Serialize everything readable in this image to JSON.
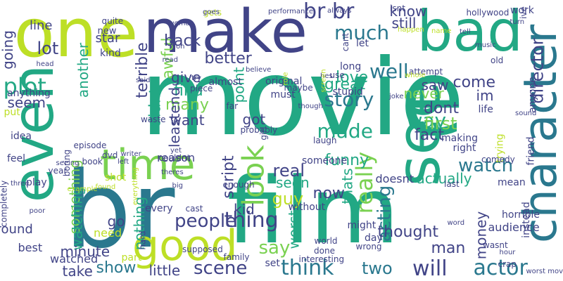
{
  "palette": {
    "dark_purple": "#440154",
    "indigo": "#414487",
    "steel_blue": "#2a788e",
    "teal": "#22a884",
    "green": "#7ad151",
    "yellow_green": "#bddf26",
    "yellow": "#fde725",
    "background": "#ffffff"
  },
  "words": [
    {
      "text": "movie",
      "color": "#22a884"
    },
    {
      "text": "film",
      "color": "#22a884"
    },
    {
      "text": "one",
      "color": "#bddf26"
    },
    {
      "text": "make",
      "color": "#414487"
    },
    {
      "text": "bad",
      "color": "#22a884"
    },
    {
      "text": "br",
      "color": "#2a788e"
    },
    {
      "text": "even",
      "color": "#22a884"
    },
    {
      "text": "time",
      "color": "#7ad151"
    },
    {
      "text": "see",
      "color": "#22a884"
    },
    {
      "text": "character",
      "color": "#2a788e"
    },
    {
      "text": "good",
      "color": "#bddf26"
    },
    {
      "text": "br br",
      "color": "#414487"
    },
    {
      "text": "people",
      "color": "#414487"
    },
    {
      "text": "really",
      "color": "#7ad151"
    },
    {
      "text": "much",
      "color": "#2a788e"
    },
    {
      "text": "well",
      "color": "#2a788e"
    },
    {
      "text": "watch",
      "color": "#2a788e"
    },
    {
      "text": "story",
      "color": "#2a788e"
    },
    {
      "text": "made",
      "color": "#22a884"
    },
    {
      "text": "way",
      "color": "#22a884"
    },
    {
      "text": "look",
      "color": "#7ad151"
    },
    {
      "text": "plot",
      "color": "#22a884"
    },
    {
      "text": "think",
      "color": "#2a788e"
    },
    {
      "text": "acting",
      "color": "#2a788e"
    },
    {
      "text": "actor",
      "color": "#2a788e"
    },
    {
      "text": "will",
      "color": "#414487"
    },
    {
      "text": "scene",
      "color": "#414487"
    },
    {
      "text": "show",
      "color": "#2a788e"
    },
    {
      "text": "thing",
      "color": "#414487"
    },
    {
      "text": "say",
      "color": "#7ad151"
    },
    {
      "text": "director",
      "color": "#414487"
    },
    {
      "text": "know",
      "color": "#414487"
    },
    {
      "text": "still",
      "color": "#414487"
    },
    {
      "text": "lot",
      "color": "#414487"
    },
    {
      "text": "better",
      "color": "#414487"
    },
    {
      "text": "line",
      "color": "#414487"
    },
    {
      "text": "going",
      "color": "#414487"
    },
    {
      "text": "seem",
      "color": "#414487"
    },
    {
      "text": "awful",
      "color": "#7ad151"
    },
    {
      "text": "back",
      "color": "#414487"
    },
    {
      "text": "another",
      "color": "#22a884"
    },
    {
      "text": "terrible",
      "color": "#414487"
    },
    {
      "text": "star",
      "color": "#414487"
    },
    {
      "text": "new",
      "color": "#414487"
    },
    {
      "text": "kind",
      "color": "#414487"
    },
    {
      "text": "quite",
      "color": "#414487"
    },
    {
      "text": "find",
      "color": "#22a884"
    },
    {
      "text": "many",
      "color": "#7ad151"
    },
    {
      "text": "leastend",
      "color": "#414487"
    },
    {
      "text": "want",
      "color": "#414487"
    },
    {
      "text": "got",
      "color": "#414487"
    },
    {
      "text": "point",
      "color": "#22a884"
    },
    {
      "text": "script",
      "color": "#414487"
    },
    {
      "text": "something",
      "color": "#7ad151"
    },
    {
      "text": "didnt",
      "color": "#22a884"
    },
    {
      "text": "give",
      "color": "#414487"
    },
    {
      "text": "great",
      "color": "#22a884"
    },
    {
      "text": "love",
      "color": "#22a884"
    },
    {
      "text": "dont",
      "color": "#414487"
    },
    {
      "text": "first",
      "color": "#7ad151"
    },
    {
      "text": "fact",
      "color": "#414487"
    },
    {
      "text": "funny",
      "color": "#22a884"
    },
    {
      "text": "real",
      "color": "#414487"
    },
    {
      "text": "guy",
      "color": "#bddf26"
    },
    {
      "text": "seen",
      "color": "#22a884"
    },
    {
      "text": "thats",
      "color": "#22a884"
    },
    {
      "text": "now",
      "color": "#414487"
    },
    {
      "text": "worst",
      "color": "#22a884"
    },
    {
      "text": "kid",
      "color": "#414487"
    },
    {
      "text": "never",
      "color": "#7ad151"
    },
    {
      "text": "im",
      "color": "#414487"
    },
    {
      "text": "come",
      "color": "#414487"
    },
    {
      "text": "saw",
      "color": "#414487"
    },
    {
      "text": "actually",
      "color": "#22a884"
    },
    {
      "text": "thought",
      "color": "#414487"
    },
    {
      "text": "money",
      "color": "#414487"
    },
    {
      "text": "man",
      "color": "#414487"
    },
    {
      "text": "two",
      "color": "#2a788e"
    },
    {
      "text": "go",
      "color": "#414487"
    },
    {
      "text": "watching",
      "color": "#22a884"
    },
    {
      "text": "nothing",
      "color": "#22a884"
    },
    {
      "text": "minute",
      "color": "#414487"
    },
    {
      "text": "little",
      "color": "#414487"
    },
    {
      "text": "take",
      "color": "#414487"
    },
    {
      "text": "watched",
      "color": "#414487"
    },
    {
      "text": "need",
      "color": "#bddf26"
    },
    {
      "text": "best",
      "color": "#414487"
    },
    {
      "text": "anything",
      "color": "#414487"
    },
    {
      "text": "around",
      "color": "#414487"
    },
    {
      "text": "completely",
      "color": "#414487"
    },
    {
      "text": "without",
      "color": "#414487"
    },
    {
      "text": "every",
      "color": "#414487"
    },
    {
      "text": "might",
      "color": "#414487"
    },
    {
      "text": "day",
      "color": "#414487"
    },
    {
      "text": "part",
      "color": "#bddf26"
    },
    {
      "text": "set",
      "color": "#414487"
    },
    {
      "text": "instead",
      "color": "#414487"
    },
    {
      "text": "audience",
      "color": "#414487"
    },
    {
      "text": "horrible",
      "color": "#414487"
    },
    {
      "text": "doesnt",
      "color": "#414487"
    },
    {
      "text": "someone",
      "color": "#414487"
    },
    {
      "text": "making",
      "color": "#414487"
    },
    {
      "text": "right",
      "color": "#414487"
    },
    {
      "text": "life",
      "color": "#414487"
    },
    {
      "text": "work",
      "color": "#414487"
    },
    {
      "text": "trying",
      "color": "#bddf26"
    },
    {
      "text": "friend",
      "color": "#414487"
    },
    {
      "text": "anyone",
      "color": "#414487"
    },
    {
      "text": "almost",
      "color": "#414487"
    },
    {
      "text": "original",
      "color": "#414487"
    },
    {
      "text": "must",
      "color": "#414487"
    },
    {
      "text": "long",
      "color": "#414487"
    },
    {
      "text": "let",
      "color": "#414487"
    },
    {
      "text": "cant",
      "color": "#414487"
    },
    {
      "text": "use",
      "color": "#414487"
    },
    {
      "text": "stupid",
      "color": "#414487"
    },
    {
      "text": "shot",
      "color": "#bddf26"
    },
    {
      "text": "reason",
      "color": "#414487"
    },
    {
      "text": "play",
      "color": "#414487"
    },
    {
      "text": "mean",
      "color": "#414487"
    },
    {
      "text": "idea",
      "color": "#414487"
    },
    {
      "text": "put",
      "color": "#bddf26"
    },
    {
      "text": "feel",
      "color": "#414487"
    },
    {
      "text": "year",
      "color": "#414487"
    },
    {
      "text": "dvd",
      "color": "#414487"
    },
    {
      "text": "book",
      "color": "#414487"
    },
    {
      "text": "girl",
      "color": "#414487"
    },
    {
      "text": "enough",
      "color": "#414487"
    },
    {
      "text": "done",
      "color": "#414487"
    },
    {
      "text": "wrong",
      "color": "#414487"
    },
    {
      "text": "family",
      "color": "#414487"
    },
    {
      "text": "supposed",
      "color": "#414487"
    },
    {
      "text": "cast",
      "color": "#414487"
    },
    {
      "text": "hard",
      "color": "#414487"
    },
    {
      "text": "maybe",
      "color": "#414487"
    },
    {
      "text": "far",
      "color": "#414487"
    },
    {
      "text": "waste",
      "color": "#414487"
    },
    {
      "text": "piece",
      "color": "#414487"
    },
    {
      "text": "probably",
      "color": "#414487"
    },
    {
      "text": "laugh",
      "color": "#414487"
    },
    {
      "text": "comedy",
      "color": "#414487"
    },
    {
      "text": "boring",
      "color": "#414487"
    },
    {
      "text": "episode",
      "color": "#414487"
    },
    {
      "text": "couldnt",
      "color": "#414487"
    },
    {
      "text": "world",
      "color": "#414487"
    },
    {
      "text": "interesting",
      "color": "#414487"
    },
    {
      "text": "hour",
      "color": "#414487"
    },
    {
      "text": "crap",
      "color": "#414487"
    },
    {
      "text": "worst movie",
      "color": "#414487"
    },
    {
      "text": "word",
      "color": "#414487"
    },
    {
      "text": "wasnt",
      "color": "#414487"
    },
    {
      "text": "sound",
      "color": "#414487"
    },
    {
      "text": "last",
      "color": "#414487"
    },
    {
      "text": "music",
      "color": "#414487"
    },
    {
      "text": "hollywood",
      "color": "#414487"
    },
    {
      "text": "turn",
      "color": "#414487"
    },
    {
      "text": "tell",
      "color": "#414487"
    },
    {
      "text": "ive",
      "color": "#414487"
    },
    {
      "text": "old",
      "color": "#414487"
    },
    {
      "text": "name",
      "color": "#bddf26"
    },
    {
      "text": "happen",
      "color": "#bddf26"
    },
    {
      "text": "gets",
      "color": "#bddf26"
    },
    {
      "text": "goes",
      "color": "#414487"
    },
    {
      "text": "performance",
      "color": "#414487"
    },
    {
      "text": "isnt",
      "color": "#414487"
    },
    {
      "text": "always",
      "color": "#414487"
    },
    {
      "text": "woman",
      "color": "#414487"
    },
    {
      "text": "oh",
      "color": "#414487"
    },
    {
      "text": "read",
      "color": "#414487"
    },
    {
      "text": "head",
      "color": "#414487"
    },
    {
      "text": "said",
      "color": "#414487"
    },
    {
      "text": "try",
      "color": "#414487"
    },
    {
      "text": "believe",
      "color": "#414487"
    },
    {
      "text": "role",
      "color": "#bddf26"
    },
    {
      "text": "hes",
      "color": "#414487"
    },
    {
      "text": "screen",
      "color": "#bddf26"
    },
    {
      "text": "attempt",
      "color": "#414487"
    },
    {
      "text": "joke",
      "color": "#414487"
    },
    {
      "text": "whole",
      "color": "#bddf26"
    },
    {
      "text": "though",
      "color": "#414487"
    },
    {
      "text": "writer",
      "color": "#414487"
    },
    {
      "text": "yet",
      "color": "#414487"
    },
    {
      "text": "left",
      "color": "#414487"
    },
    {
      "text": "seeing",
      "color": "#414487"
    },
    {
      "text": "three",
      "color": "#414487"
    },
    {
      "text": "poor",
      "color": "#414487"
    },
    {
      "text": "example",
      "color": "#bddf26"
    },
    {
      "text": "found",
      "color": "#bddf26"
    },
    {
      "text": "everything",
      "color": "#bddf26"
    },
    {
      "text": "theres",
      "color": "#414487"
    },
    {
      "text": "big",
      "color": "#414487"
    },
    {
      "text": "course",
      "color": "#414487"
    },
    {
      "text": "action",
      "color": "#414487"
    },
    {
      "text": "u",
      "color": "#bddf26"
    }
  ]
}
